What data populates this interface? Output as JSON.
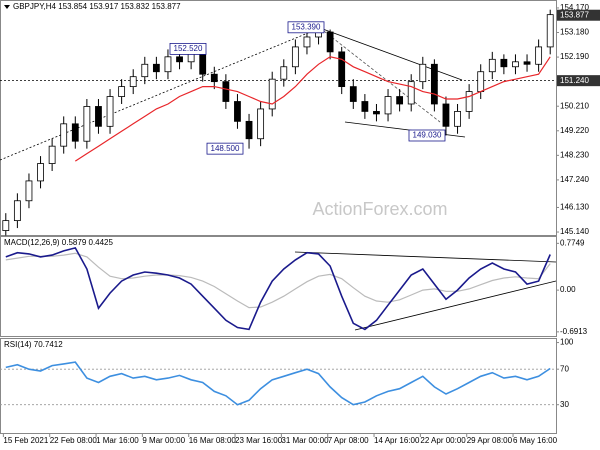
{
  "header": {
    "title": "GBPJPY,H4  153.854 153.917 153.832 153.877"
  },
  "watermark": "ActionForex.com",
  "chart_data": [
    {
      "type": "candlestick",
      "open": [
        145.2,
        145.6,
        146.4,
        147.2,
        147.9,
        148.6,
        149.5,
        148.8,
        150.2,
        149.4,
        150.6,
        151.0,
        151.4,
        151.9,
        151.6,
        152.2,
        152.0,
        152.4,
        151.5,
        151.2,
        150.4,
        149.6,
        148.9,
        150.1,
        151.3,
        151.8,
        152.6,
        153.0,
        153.2,
        152.4,
        151.0,
        150.4,
        150.0,
        149.9,
        150.6,
        150.3,
        151.2,
        151.9,
        150.3,
        149.4,
        150.0,
        150.8,
        151.6,
        152.1,
        151.8,
        152.0,
        151.9,
        152.6
      ],
      "high": [
        145.9,
        146.7,
        147.5,
        148.2,
        148.9,
        149.8,
        149.8,
        150.5,
        150.5,
        150.9,
        151.3,
        151.7,
        152.2,
        152.2,
        152.5,
        152.5,
        152.52,
        152.45,
        151.8,
        151.5,
        150.7,
        149.9,
        150.4,
        151.6,
        152.1,
        152.9,
        153.3,
        153.39,
        153.3,
        152.6,
        151.3,
        150.7,
        150.3,
        150.9,
        150.9,
        151.5,
        152.2,
        152.1,
        150.6,
        150.3,
        151.1,
        151.9,
        152.4,
        152.3,
        152.3,
        152.3,
        152.9,
        154.1
      ],
      "low": [
        145.0,
        145.3,
        146.1,
        146.9,
        147.6,
        148.3,
        148.5,
        148.5,
        149.1,
        149.1,
        150.3,
        150.7,
        151.1,
        151.3,
        151.3,
        151.7,
        151.7,
        151.2,
        150.9,
        150.1,
        149.3,
        148.5,
        148.6,
        149.8,
        151.0,
        151.5,
        152.3,
        152.7,
        152.1,
        150.7,
        150.1,
        149.7,
        149.6,
        149.6,
        150.0,
        150.0,
        150.9,
        150.0,
        149.03,
        149.1,
        149.7,
        150.5,
        151.3,
        151.5,
        151.5,
        151.6,
        151.6,
        152.3
      ],
      "close": [
        145.6,
        146.4,
        147.2,
        147.9,
        148.6,
        149.5,
        148.8,
        150.2,
        149.4,
        150.6,
        151.0,
        151.4,
        151.9,
        151.6,
        152.2,
        152.0,
        152.4,
        151.5,
        151.2,
        150.4,
        149.6,
        148.9,
        150.1,
        151.3,
        151.8,
        152.6,
        153.0,
        153.2,
        152.4,
        151.0,
        150.4,
        150.0,
        149.9,
        150.6,
        150.3,
        151.2,
        151.9,
        150.3,
        149.4,
        150.0,
        150.8,
        151.6,
        152.1,
        151.8,
        152.0,
        151.9,
        152.6,
        153.9
      ],
      "up_color": "#ffffff",
      "down_color": "#000000",
      "ma": {
        "color": "#e8262a",
        "values": [
          null,
          null,
          null,
          null,
          null,
          null,
          148.0,
          148.3,
          148.6,
          148.9,
          149.2,
          149.5,
          149.8,
          150.1,
          150.3,
          150.6,
          150.8,
          151.0,
          151.0,
          150.9,
          150.8,
          150.6,
          150.4,
          150.3,
          150.6,
          151.0,
          151.5,
          151.9,
          152.2,
          152.1,
          151.8,
          151.6,
          151.4,
          151.2,
          151.1,
          151.0,
          150.8,
          150.7,
          150.5,
          150.5,
          150.6,
          150.8,
          151.0,
          151.2,
          151.3,
          151.4,
          151.5,
          152.2
        ]
      },
      "ylim": [
        144.98,
        154.45
      ],
      "yticks": [
        {
          "value": 154.17,
          "label": "154.170"
        },
        {
          "value": 153.18,
          "label": "153.180"
        },
        {
          "value": 152.19,
          "label": "152.190"
        },
        {
          "value": 150.21,
          "label": "150.210"
        },
        {
          "value": 149.22,
          "label": "149.220"
        },
        {
          "value": 148.23,
          "label": "148.230"
        },
        {
          "value": 147.24,
          "label": "147.240"
        },
        {
          "value": 146.13,
          "label": "146.130"
        },
        {
          "value": 145.14,
          "label": "145.140"
        }
      ],
      "level": {
        "value": 151.24,
        "label": "151.240"
      },
      "last_price": {
        "value": 153.877,
        "label": "153.877"
      },
      "annotations": [
        {
          "value": 152.52,
          "label": "152.520"
        },
        {
          "value": 153.39,
          "label": "153.390"
        },
        {
          "value": 148.5,
          "label": "148.500"
        },
        {
          "value": 149.03,
          "label": "149.030"
        }
      ]
    },
    {
      "type": "line",
      "title": "MACD(12,26,9) 0.5879 0.4425",
      "series": [
        {
          "color": "#1a1a8c",
          "values": [
            0.55,
            0.62,
            0.6,
            0.55,
            0.58,
            0.65,
            0.7,
            0.35,
            -0.3,
            -0.05,
            0.15,
            0.25,
            0.3,
            0.28,
            0.25,
            0.2,
            0.1,
            -0.1,
            -0.3,
            -0.5,
            -0.62,
            -0.65,
            -0.2,
            0.15,
            0.35,
            0.5,
            0.62,
            0.6,
            0.4,
            -0.1,
            -0.55,
            -0.65,
            -0.5,
            -0.25,
            0.0,
            0.25,
            0.35,
            0.1,
            -0.15,
            0.0,
            0.2,
            0.35,
            0.45,
            0.35,
            0.3,
            0.1,
            0.15,
            0.59
          ]
        },
        {
          "color": "#bbbbbb",
          "values": [
            0.5,
            0.53,
            0.56,
            0.56,
            0.56,
            0.58,
            0.61,
            0.55,
            0.38,
            0.23,
            0.19,
            0.2,
            0.23,
            0.25,
            0.25,
            0.24,
            0.21,
            0.15,
            0.06,
            -0.06,
            -0.18,
            -0.29,
            -0.28,
            -0.2,
            -0.1,
            0.02,
            0.14,
            0.23,
            0.26,
            0.19,
            0.04,
            -0.1,
            -0.18,
            -0.2,
            -0.16,
            -0.08,
            0.0,
            0.02,
            -0.02,
            -0.02,
            0.02,
            0.09,
            0.16,
            0.2,
            0.22,
            0.2,
            0.19,
            0.44
          ]
        }
      ],
      "ylim": [
        -0.76,
        0.88
      ],
      "yticks": [
        0.7749,
        {
          "value": 0,
          "label": "0.00"
        },
        -0.6913
      ]
    },
    {
      "type": "line",
      "title": "RSI(14) 70.7412",
      "categories": [
        null,
        "15 Feb 2021",
        null,
        null,
        null,
        "22 Feb 08:00",
        null,
        null,
        null,
        "1 Mar 16:00",
        null,
        null,
        null,
        "9 Mar 00:00",
        null,
        null,
        null,
        "16 Mar 08:00",
        null,
        null,
        null,
        "23 Mar 16:00",
        null,
        null,
        null,
        "31 Mar 00:00",
        null,
        null,
        null,
        "7 Apr 08:00",
        null,
        null,
        null,
        "14 Apr 16:00",
        null,
        null,
        null,
        "22 Apr 00:00",
        null,
        null,
        null,
        "29 Apr 08:00",
        null,
        null,
        null,
        "6 May 16:00",
        null,
        null
      ],
      "series": [
        {
          "color": "#3d8fe0",
          "values": [
            72,
            75,
            70,
            68,
            74,
            76,
            78,
            60,
            55,
            62,
            65,
            60,
            62,
            58,
            60,
            63,
            58,
            55,
            45,
            40,
            30,
            35,
            48,
            58,
            62,
            66,
            70,
            65,
            50,
            38,
            30,
            33,
            40,
            45,
            48,
            55,
            62,
            50,
            42,
            48,
            55,
            62,
            66,
            60,
            62,
            58,
            62,
            70.74
          ]
        }
      ],
      "ylim": [
        -3,
        104
      ],
      "yticks": [
        100,
        70,
        30
      ],
      "levels": [
        70,
        30
      ]
    }
  ]
}
